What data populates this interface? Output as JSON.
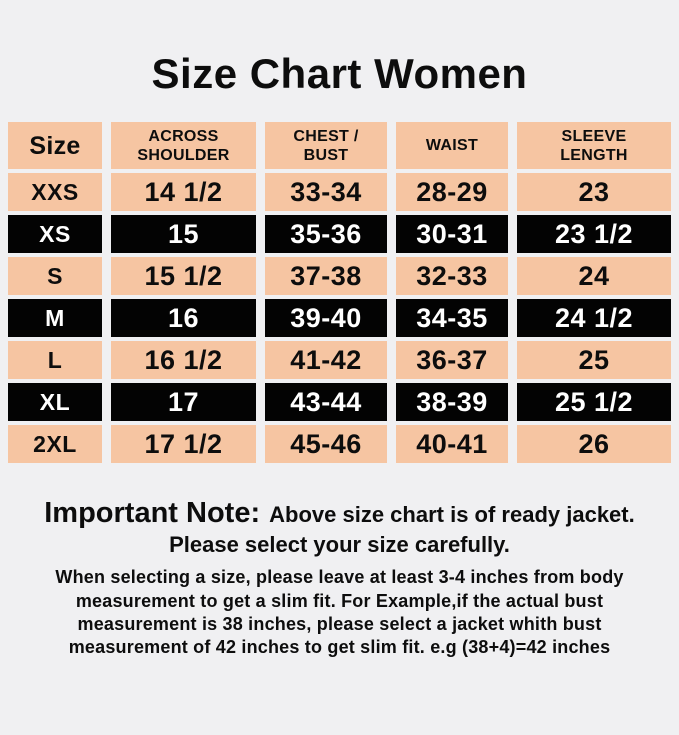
{
  "page": {
    "title": "Size Chart Women",
    "colors": {
      "background": "#f0f0f2",
      "cell_peach": "#f6c5a2",
      "cell_black": "#030303",
      "text_dark": "#0d0d0d",
      "text_light": "#ffffff"
    }
  },
  "table": {
    "columns": [
      "Size",
      "ACROSS\nSHOULDER",
      "CHEST /\nBUST",
      "WAIST",
      "SLEEVE\nLENGTH"
    ],
    "rows": [
      {
        "size": "XXS",
        "across_shoulder": "14 1/2",
        "chest_bust": "33-34",
        "waist": "28-29",
        "sleeve_length": "23"
      },
      {
        "size": "XS",
        "across_shoulder": "15",
        "chest_bust": "35-36",
        "waist": "30-31",
        "sleeve_length": "23 1/2"
      },
      {
        "size": "S",
        "across_shoulder": "15 1/2",
        "chest_bust": "37-38",
        "waist": "32-33",
        "sleeve_length": "24"
      },
      {
        "size": "M",
        "across_shoulder": "16",
        "chest_bust": "39-40",
        "waist": "34-35",
        "sleeve_length": "24 1/2"
      },
      {
        "size": "L",
        "across_shoulder": "16 1/2",
        "chest_bust": "41-42",
        "waist": "36-37",
        "sleeve_length": "25"
      },
      {
        "size": "XL",
        "across_shoulder": "17",
        "chest_bust": "43-44",
        "waist": "38-39",
        "sleeve_length": "25 1/2"
      },
      {
        "size": "2XL",
        "across_shoulder": "17 1/2",
        "chest_bust": "45-46",
        "waist": "40-41",
        "sleeve_length": "26"
      }
    ]
  },
  "note": {
    "title": "Important Note:",
    "headline": "Above size chart is of ready jacket.",
    "subheadline": "Please select your size carefully.",
    "paragraph": "When selecting a size, please leave at least 3-4 inches from body\nmeasurement to get a slim fit. For Example,if the actual bust\nmeasurement is 38 inches, please select a jacket whith bust\nmeasurement of 42 inches to get slim fit. e.g (38+4)=42 inches"
  }
}
